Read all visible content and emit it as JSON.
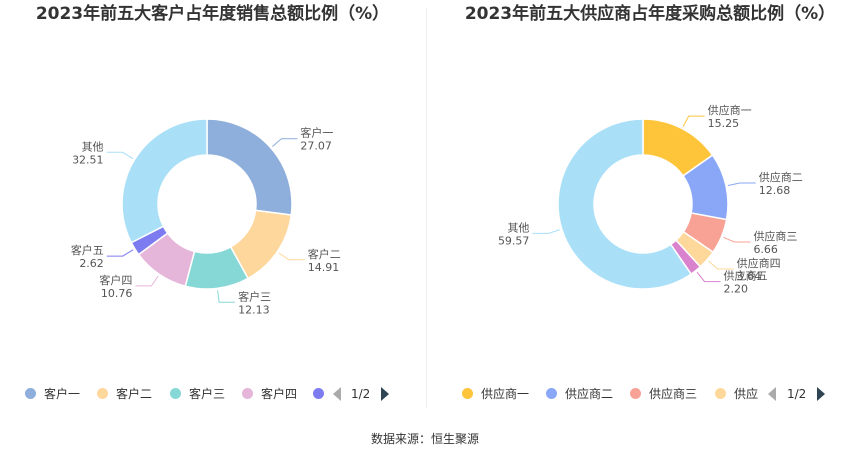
{
  "footer": {
    "source": "数据来源：恒生聚源"
  },
  "chart_data": [
    {
      "type": "pie",
      "title": "2023年前五大客户占年度销售总额比例（%）",
      "categories": [
        "客户一",
        "客户二",
        "客户三",
        "客户四",
        "客户五",
        "其他"
      ],
      "values": [
        27.07,
        14.91,
        12.13,
        10.76,
        2.62,
        32.51
      ],
      "value_labels": [
        "27.07",
        "14.91",
        "12.13",
        "10.76",
        "2.62",
        "32.51"
      ],
      "colors": [
        "#8eaedb",
        "#fed79c",
        "#86d8d6",
        "#e5b6da",
        "#7c7cf0",
        "#aadff8"
      ],
      "legend": {
        "placement": "bottom",
        "visible_items": [
          "客户一",
          "客户二",
          "客户三",
          "客户四",
          ""
        ],
        "page": "1/2"
      }
    },
    {
      "type": "pie",
      "title": "2023年前五大供应商占年度采购总额比例（%）",
      "categories": [
        "供应商一",
        "供应商二",
        "供应商三",
        "供应商四",
        "供应商五",
        "其他"
      ],
      "values": [
        15.25,
        12.68,
        6.66,
        3.64,
        2.2,
        59.57
      ],
      "value_labels": [
        "15.25",
        "12.68",
        "6.66",
        "3.64",
        "2.20",
        "59.57"
      ],
      "colors": [
        "#fec53b",
        "#8aa7f7",
        "#f8a296",
        "#fdd89a",
        "#d982ce",
        "#aadff8"
      ],
      "legend": {
        "placement": "bottom",
        "visible_items": [
          "供应商一",
          "供应商二",
          "供应商三",
          "供应"
        ],
        "page": "1/2"
      }
    }
  ]
}
